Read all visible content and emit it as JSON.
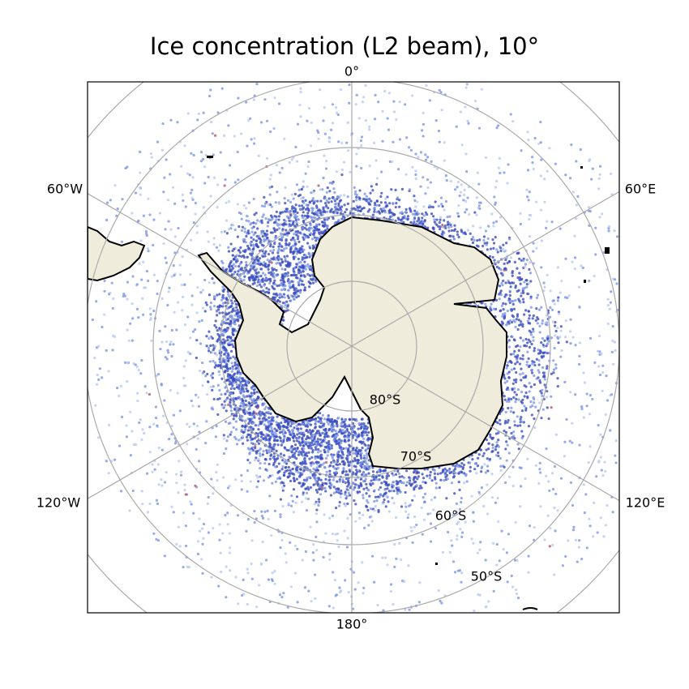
{
  "title": "Ice concentration (L2 beam), 10°",
  "meridian_labels": {
    "m0": "0°",
    "m60e": "60°E",
    "m120e": "120°E",
    "m180": "180°",
    "m120w": "120°W",
    "m60w": "60°W"
  },
  "parallel_labels": {
    "p80": "80°S",
    "p70": "70°S",
    "p60": "60°S",
    "p50": "50°S"
  },
  "colors": {
    "land": "#efecdc",
    "coast": "#000000",
    "grid": "#aaaaaa",
    "ice_dense": "#3a4cc0",
    "ice_light": "#7b96e6",
    "ice_faint": "#b7c8f2",
    "outlier": "#c0505a"
  }
}
